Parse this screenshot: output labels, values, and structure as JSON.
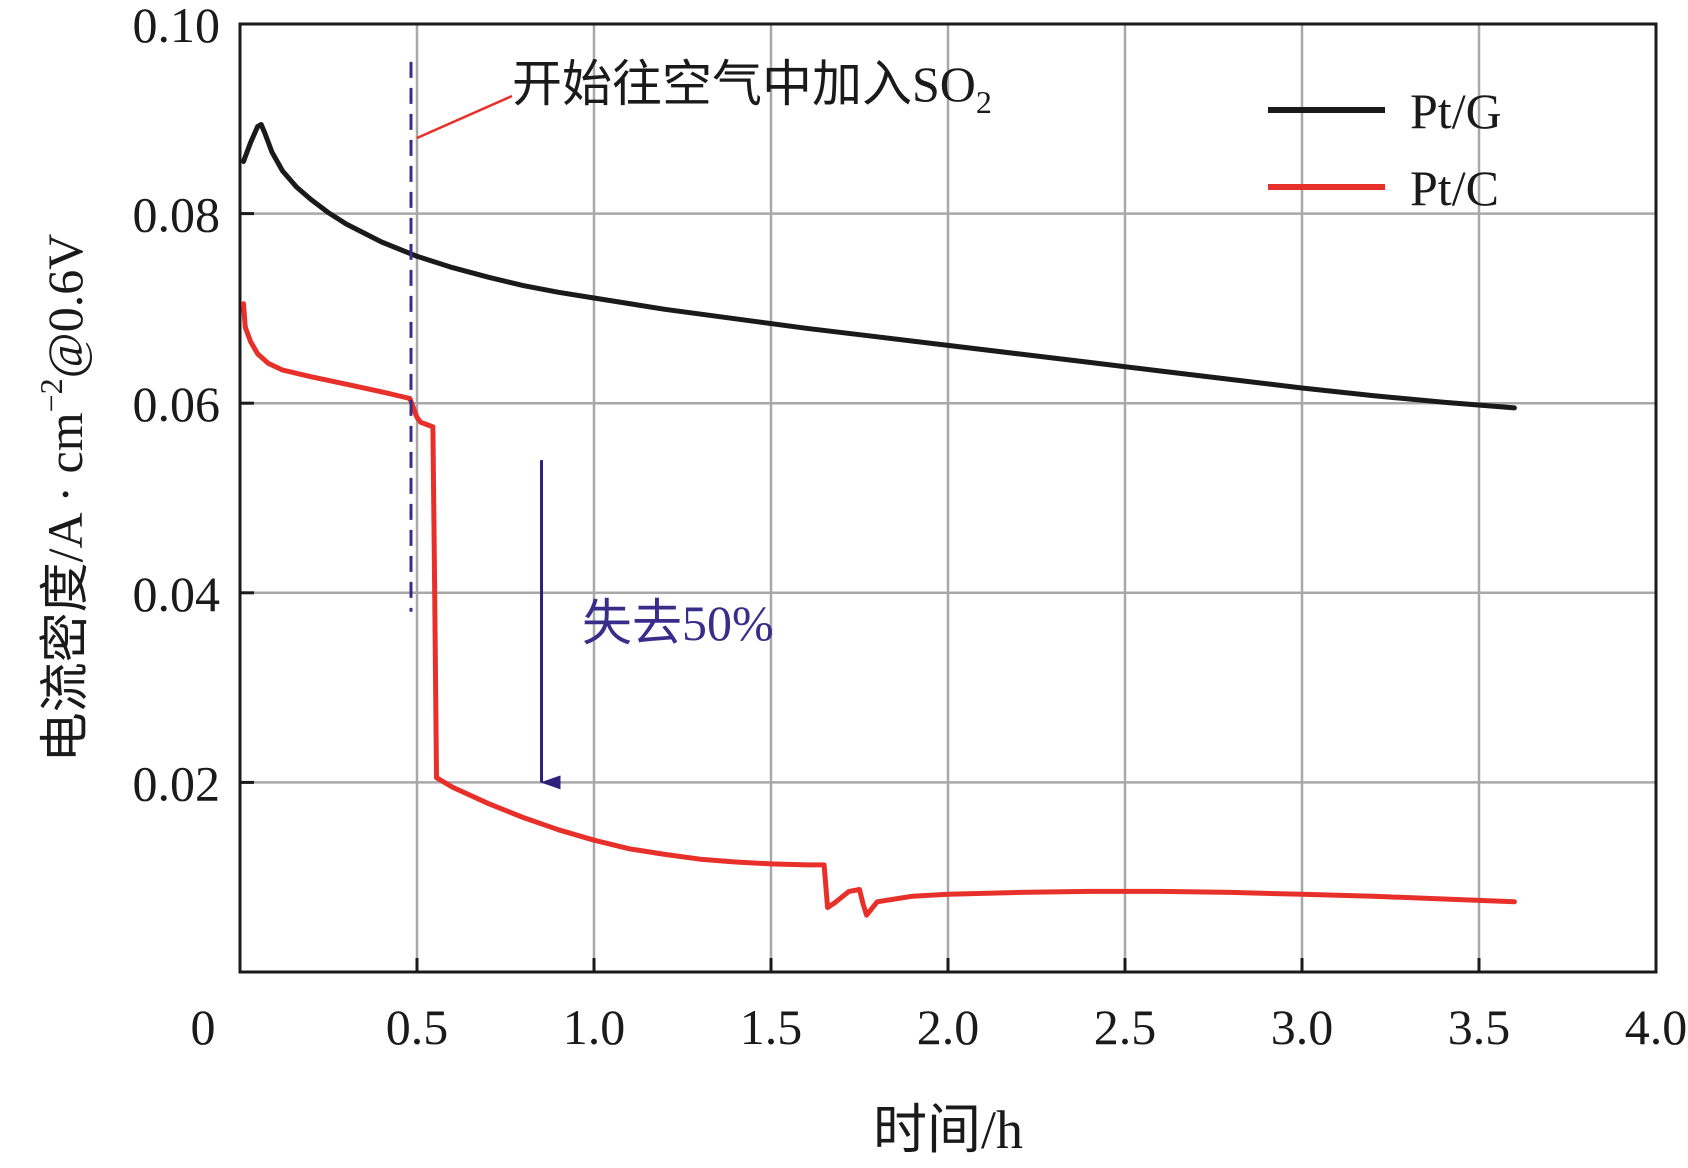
{
  "chart_data": {
    "type": "line",
    "title": "",
    "xlabel": "时间/h",
    "ylabel": "电流密度/A · cm⁻²@0.6V",
    "ylabel_parts": {
      "prefix": "电流密度/A · cm",
      "sup": "−2",
      "suffix": "@0.6V"
    },
    "xlim": [
      0,
      4.0
    ],
    "ylim": [
      0,
      0.1
    ],
    "grid": true,
    "legend_position": "top-right",
    "x_ticks": [
      0.5,
      1.0,
      1.5,
      2.0,
      2.5,
      3.0,
      3.5,
      4.0
    ],
    "x_tick_labels": [
      "0.5",
      "1.0",
      "1.5",
      "2.0",
      "2.5",
      "3.0",
      "3.5",
      "4.0"
    ],
    "y_ticks": [
      0.02,
      0.04,
      0.06,
      0.08,
      0.1
    ],
    "y_tick_labels": [
      "0.02",
      "0.04",
      "0.06",
      "0.08",
      "0.10"
    ],
    "origin_label": "0",
    "series": [
      {
        "name": "Pt/G",
        "color": "#1a1a1a",
        "x": [
          0.01,
          0.03,
          0.05,
          0.06,
          0.07,
          0.09,
          0.12,
          0.16,
          0.2,
          0.25,
          0.3,
          0.4,
          0.5,
          0.6,
          0.7,
          0.8,
          0.9,
          1.0,
          1.2,
          1.4,
          1.6,
          1.8,
          2.0,
          2.2,
          2.4,
          2.6,
          2.8,
          3.0,
          3.2,
          3.4,
          3.6
        ],
        "values": [
          0.0855,
          0.0875,
          0.0892,
          0.0894,
          0.0885,
          0.0865,
          0.0845,
          0.0828,
          0.0815,
          0.0801,
          0.0789,
          0.077,
          0.0755,
          0.0743,
          0.0733,
          0.0724,
          0.0717,
          0.0711,
          0.0699,
          0.0689,
          0.0679,
          0.067,
          0.0661,
          0.0652,
          0.0643,
          0.0634,
          0.0625,
          0.0616,
          0.0608,
          0.0601,
          0.0595
        ]
      },
      {
        "name": "Pt/C",
        "color": "#e8302a",
        "x": [
          0.01,
          0.015,
          0.03,
          0.05,
          0.08,
          0.12,
          0.2,
          0.3,
          0.4,
          0.48,
          0.5,
          0.51,
          0.545,
          0.55,
          0.555,
          0.6,
          0.7,
          0.8,
          0.9,
          1.0,
          1.1,
          1.2,
          1.3,
          1.4,
          1.5,
          1.6,
          1.65,
          1.66,
          1.68,
          1.72,
          1.75,
          1.76,
          1.77,
          1.8,
          1.9,
          2.0,
          2.2,
          2.4,
          2.6,
          2.8,
          3.0,
          3.2,
          3.4,
          3.6
        ],
        "values": [
          0.0705,
          0.068,
          0.0665,
          0.0652,
          0.0642,
          0.0635,
          0.0628,
          0.062,
          0.0612,
          0.0605,
          0.0585,
          0.058,
          0.0575,
          0.04,
          0.0205,
          0.0195,
          0.0178,
          0.0163,
          0.015,
          0.0139,
          0.013,
          0.0124,
          0.0119,
          0.0116,
          0.0114,
          0.0113,
          0.0113,
          0.0068,
          0.0073,
          0.0085,
          0.0087,
          0.0072,
          0.006,
          0.0074,
          0.008,
          0.0082,
          0.0084,
          0.0085,
          0.0085,
          0.0084,
          0.0082,
          0.008,
          0.0077,
          0.0074
        ]
      }
    ],
    "annotations": [
      {
        "id": "so2",
        "type": "vline-dashed",
        "x": 0.5,
        "y_from": 0.038,
        "y_to": 0.096,
        "color": "#3a2d8a"
      },
      {
        "id": "so2_text",
        "type": "text-callout",
        "text": "开始往空气中加入SO",
        "subscript": "2",
        "color": "#1a1a1a",
        "line_color": "#e8302a"
      },
      {
        "id": "loss",
        "type": "arrow-down",
        "x": 0.88,
        "y_from": 0.054,
        "y_to": 0.02,
        "color": "#2d1f7a"
      },
      {
        "id": "loss_text",
        "type": "text",
        "text": "失去50%",
        "color": "#3a2d8a"
      }
    ]
  }
}
